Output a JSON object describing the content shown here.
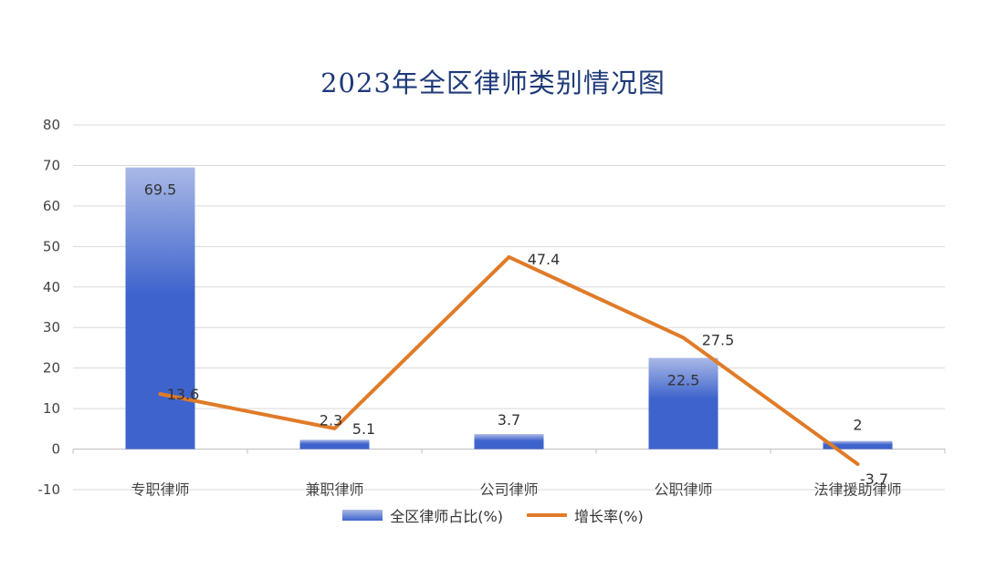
{
  "chart_data": {
    "type": "bar+line",
    "title": "2023年全区律师类别情况图",
    "categories": [
      "专职律师",
      "兼职律师",
      "公司律师",
      "公职律师",
      "法律援助律师"
    ],
    "series": [
      {
        "name": "全区律师占比(%)",
        "type": "bar",
        "values": [
          69.5,
          2.3,
          3.7,
          22.5,
          2
        ]
      },
      {
        "name": "增长率(%)",
        "type": "line",
        "values": [
          13.6,
          5.1,
          47.4,
          27.5,
          -3.7
        ]
      }
    ],
    "ylim": [
      -10,
      80
    ],
    "yticks": [
      -10,
      0,
      10,
      20,
      30,
      40,
      50,
      60,
      70,
      80
    ],
    "grid": true,
    "legend_position": "bottom",
    "colors": {
      "bar_top": "#a9b9e6",
      "bar_bottom": "#3e63cc",
      "line": "#e07b28",
      "title": "#1f3a78",
      "grid": "#d9d9d9"
    }
  }
}
